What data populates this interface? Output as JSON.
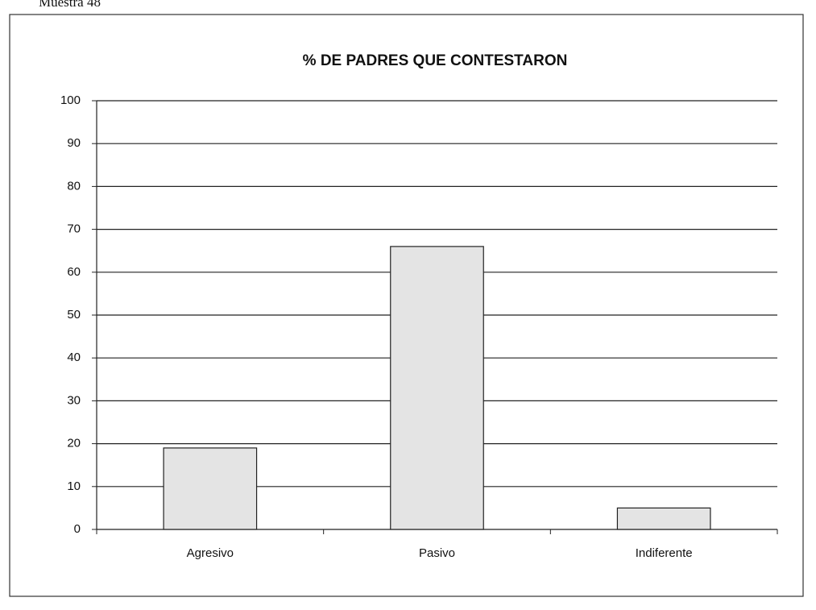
{
  "caption": "Muestra 48",
  "chart_data": {
    "type": "bar",
    "title": "% DE PADRES QUE CONTESTARON",
    "categories": [
      "Agresivo",
      "Pasivo",
      "Indiferente"
    ],
    "values": [
      19,
      66,
      5
    ],
    "color": "#e4e4e4",
    "ylim": [
      0,
      100
    ],
    "yticks": [
      0,
      10,
      20,
      30,
      40,
      50,
      60,
      70,
      80,
      90,
      100
    ],
    "grid": true
  }
}
